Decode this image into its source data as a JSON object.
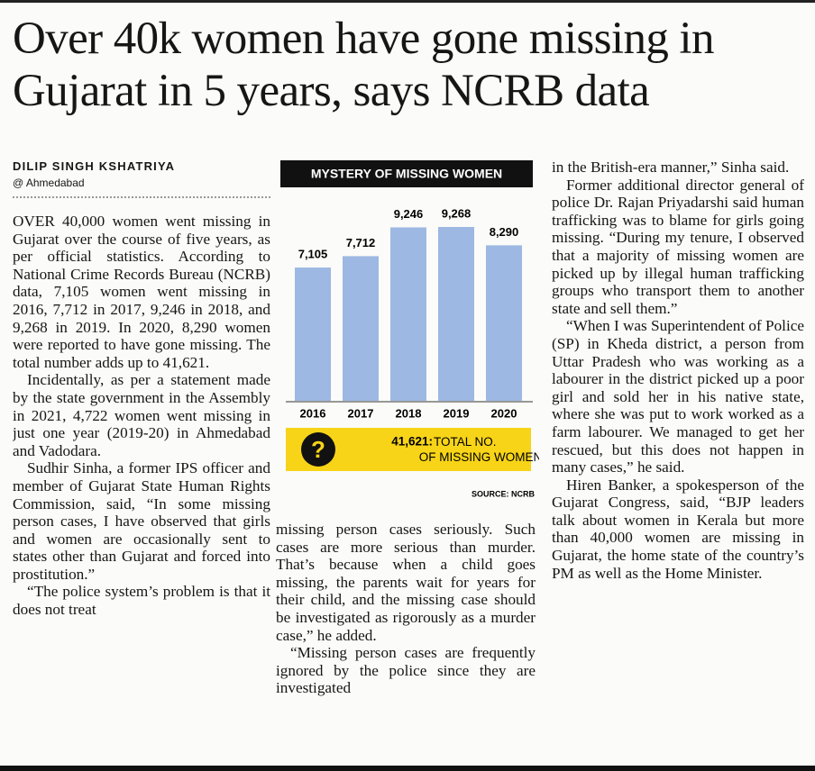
{
  "headline": "Over 40k women have gone missing in Gujarat in 5 years, says NCRB data",
  "byline": {
    "author": "DILIP SINGH KSHATRIYA",
    "location": "@ Ahmedabad"
  },
  "chart": {
    "type": "bar",
    "title": "MYSTERY OF MISSING WOMEN",
    "categories": [
      "2016",
      "2017",
      "2018",
      "2019",
      "2020"
    ],
    "values": [
      7105,
      7712,
      9246,
      9268,
      8290
    ],
    "value_labels": [
      "7,105",
      "7,712",
      "9,246",
      "9,268",
      "8,290"
    ],
    "color": "#9db8e2",
    "total": {
      "value": 41621,
      "label": "41,621:",
      "text": "TOTAL NO. OF MISSING WOMEN"
    },
    "source": "SOURCE: NCRB"
  },
  "columns": [
    [
      "OVER 40,000 women went missing in Gujarat over the course of five years, as per official statistics. According to National Crime Records Bureau (NCRB) data, 7,105 women went missing in 2016, 7,712 in 2017, 9,246 in 2018, and 9,268 in 2019. In 2020, 8,290 women were reported to have gone missing. The total number adds up to 41,621.",
      "Incidentally, as per a statement made by the state government in the Assembly in 2021, 4,722 women went missing in just one year (2019-20) in Ahmedabad and Vadodara.",
      "Sudhir Sinha, a former IPS officer and member of Gujarat State Human Rights Commission, said, “In some missing person cases, I have observed that girls and women are occasionally sent to states other than Gujarat and forced into prostitution.”",
      "“The police system’s problem is that it does not treat"
    ],
    [
      "missing person cases seriously. Such cases are more serious than murder. That’s because when a child goes missing, the parents wait for years for their child, and the missing case should be investigated as rigorously as a murder case,” he added.",
      "“Missing person cases are frequently ignored by the police since they are investigated"
    ],
    [
      "in the British-era manner,” Sinha said.",
      "Former additional director general of police Dr. Rajan Priyadarshi said human trafficking was to blame for girls going missing. “During my tenure, I observed that a majority of missing women are picked up by illegal human trafficking groups who transport them to another state and sell them.”",
      "“When I was Superintendent of Police (SP) in Kheda district, a person from Uttar Pradesh who was working as a labourer in the district picked up a poor girl and sold her in his native state, where she was put to work worked as a farm labourer. We managed to get her rescued, but this does not happen in many cases,” he said.",
      "Hiren Banker, a spokesperson of the Gujarat Congress, said, “BJP leaders talk about women in Kerala but more than 40,000 women are missing in Gujarat, the home state of the country’s PM as well as the Home Minister."
    ]
  ]
}
